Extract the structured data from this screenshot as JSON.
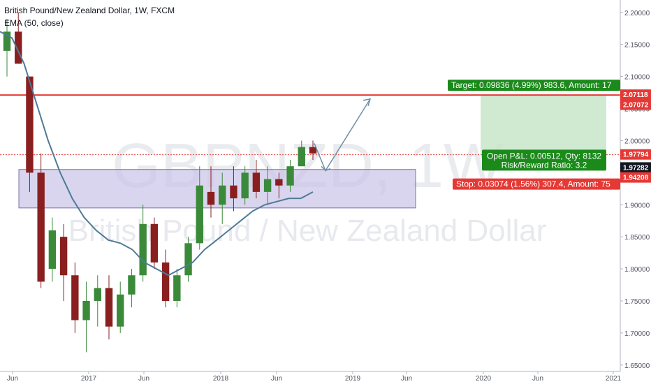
{
  "header": {
    "title": "British Pound/New Zealand Dollar, 1W, FXCM",
    "indicator": "EMA (50, close)"
  },
  "watermark": {
    "symbol": "GBPNZD, 1W",
    "name": "British Pound / New Zealand Dollar"
  },
  "colors": {
    "up": "#3a8a3a",
    "down": "#8a1f1f",
    "ema": "#4f7a96",
    "target_line": "#e53935",
    "stop_label": "#e53935",
    "target_label": "#1b8a1b",
    "zone": "#c9c3e8",
    "profit_zone": "#c8e6c9"
  },
  "chart_data": {
    "type": "candlestick",
    "title": "British Pound/New Zealand Dollar, 1W, FXCM",
    "x_ticks": [
      "Jun",
      "2017",
      "Jun",
      "2018",
      "Jun",
      "2019",
      "Jun",
      "2020",
      "Jun",
      "2021"
    ],
    "y_ticks": [
      "2.20000",
      "2.15000",
      "2.10000",
      "2.05000",
      "2.00000",
      "1.95000",
      "1.90000",
      "1.85000",
      "1.80000",
      "1.75000",
      "1.70000",
      "1.65000"
    ],
    "ylim": [
      1.64,
      2.215
    ],
    "price_labels": [
      "2.07118",
      "2.07072",
      "1.97794",
      "1.97282",
      "1.94208"
    ],
    "ema_name": "EMA (50, close)",
    "ema": [
      2.17,
      2.16,
      2.12,
      2.06,
      2.0,
      1.95,
      1.91,
      1.88,
      1.86,
      1.845,
      1.84,
      1.83,
      1.81,
      1.8,
      1.79,
      1.8,
      1.81,
      1.83,
      1.845,
      1.86,
      1.875,
      1.89,
      1.9,
      1.905,
      1.91,
      1.91,
      1.92
    ],
    "candles": [
      {
        "o": 2.14,
        "h": 2.19,
        "l": 2.1,
        "c": 2.17
      },
      {
        "o": 2.17,
        "h": 2.2,
        "l": 2.12,
        "c": 2.12
      },
      {
        "o": 2.1,
        "h": 2.1,
        "l": 1.92,
        "c": 1.95
      },
      {
        "o": 1.95,
        "h": 1.98,
        "l": 1.77,
        "c": 1.78
      },
      {
        "o": 1.8,
        "h": 1.88,
        "l": 1.78,
        "c": 1.86
      },
      {
        "o": 1.85,
        "h": 1.87,
        "l": 1.75,
        "c": 1.79
      },
      {
        "o": 1.79,
        "h": 1.81,
        "l": 1.7,
        "c": 1.72
      },
      {
        "o": 1.72,
        "h": 1.78,
        "l": 1.67,
        "c": 1.75
      },
      {
        "o": 1.75,
        "h": 1.79,
        "l": 1.71,
        "c": 1.77
      },
      {
        "o": 1.77,
        "h": 1.79,
        "l": 1.69,
        "c": 1.71
      },
      {
        "o": 1.71,
        "h": 1.78,
        "l": 1.7,
        "c": 1.76
      },
      {
        "o": 1.76,
        "h": 1.8,
        "l": 1.74,
        "c": 1.79
      },
      {
        "o": 1.79,
        "h": 1.9,
        "l": 1.78,
        "c": 1.87
      },
      {
        "o": 1.87,
        "h": 1.88,
        "l": 1.8,
        "c": 1.81
      },
      {
        "o": 1.81,
        "h": 1.83,
        "l": 1.74,
        "c": 1.75
      },
      {
        "o": 1.75,
        "h": 1.8,
        "l": 1.74,
        "c": 1.79
      },
      {
        "o": 1.79,
        "h": 1.85,
        "l": 1.78,
        "c": 1.84
      },
      {
        "o": 1.84,
        "h": 1.96,
        "l": 1.83,
        "c": 1.93
      },
      {
        "o": 1.92,
        "h": 1.96,
        "l": 1.88,
        "c": 1.9
      },
      {
        "o": 1.9,
        "h": 1.95,
        "l": 1.87,
        "c": 1.93
      },
      {
        "o": 1.93,
        "h": 1.96,
        "l": 1.89,
        "c": 1.91
      },
      {
        "o": 1.91,
        "h": 1.96,
        "l": 1.9,
        "c": 1.95
      },
      {
        "o": 1.95,
        "h": 1.97,
        "l": 1.91,
        "c": 1.92
      },
      {
        "o": 1.92,
        "h": 1.96,
        "l": 1.9,
        "c": 1.94
      },
      {
        "o": 1.94,
        "h": 1.95,
        "l": 1.91,
        "c": 1.93
      },
      {
        "o": 1.93,
        "h": 1.97,
        "l": 1.92,
        "c": 1.96
      },
      {
        "o": 1.96,
        "h": 2.0,
        "l": 1.96,
        "c": 1.99
      },
      {
        "o": 1.99,
        "h": 2.0,
        "l": 1.97,
        "c": 1.98
      }
    ],
    "support_zone": [
      1.895,
      1.955
    ],
    "arrow_target": 2.065,
    "target_label": "Target: 0.09836 (4.99%) 983.6, Amount: 17",
    "open_pnl_label": "Open P&L: 0.00512, Qty: 8132",
    "risk_reward_label": "Risk/Reward Ratio: 3.2",
    "stop_label": "Stop: 0.03074 (1.56%) 307.4, Amount: 75",
    "position": {
      "entry": 1.97282,
      "target": 2.07118,
      "stop": 1.94208
    }
  }
}
